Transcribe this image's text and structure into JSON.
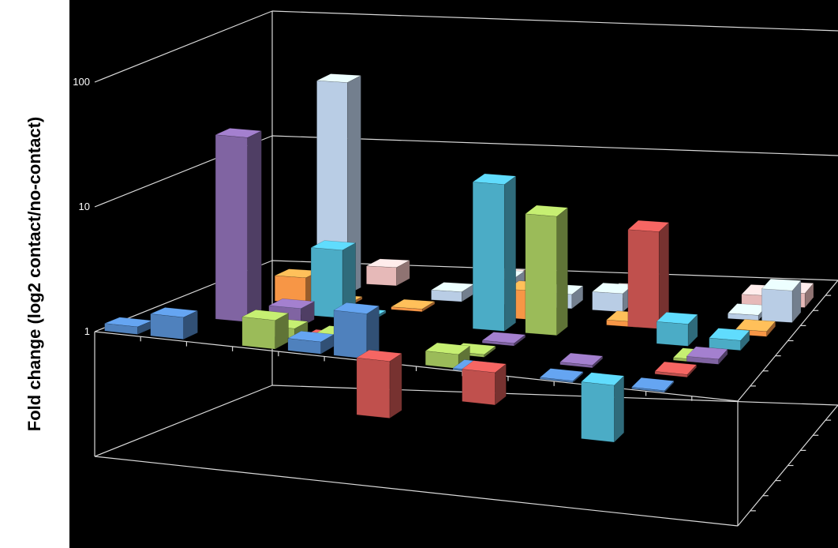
{
  "chart_data": {
    "type": "bar",
    "subtype": "3d-column",
    "title": "",
    "ylabel": "Fold change (log2 contact/no-contact)",
    "xlabel": "",
    "yscale": "log",
    "ylim": [
      0.1,
      100
    ],
    "yticks": [
      {
        "value": 1,
        "label": "1"
      },
      {
        "value": 10,
        "label": "10"
      },
      {
        "value": 100,
        "label": "100"
      }
    ],
    "grid": true,
    "background": "#000000",
    "series_colors": [
      "#4f81bd",
      "#9bbb59",
      "#c0504d",
      "#8064a2",
      "#4bacc6",
      "#f79646",
      "#b9cde5",
      "#e6b9b8"
    ],
    "bars": [
      {
        "row": 0,
        "col": 0,
        "color": "#4f81bd",
        "value": 1.15
      },
      {
        "row": 0,
        "col": 1,
        "color": "#4f81bd",
        "value": 1.5
      },
      {
        "row": 0,
        "col": 3,
        "color": "#9bbb59",
        "value": 1.7
      },
      {
        "row": 0,
        "col": 4,
        "color": "#4f81bd",
        "value": 1.25
      },
      {
        "row": 0,
        "col": 5,
        "color": "#4f81bd",
        "value": 2.3
      },
      {
        "row": 0,
        "col": 5.5,
        "color": "#c0504d",
        "value": 0.35
      },
      {
        "row": 0,
        "col": 7,
        "color": "#9bbb59",
        "value": 1.3
      },
      {
        "row": 0,
        "col": 7.6,
        "color": "#4f81bd",
        "value": 0.97
      },
      {
        "row": 0,
        "col": 7.8,
        "color": "#c0504d",
        "value": 0.55
      },
      {
        "row": 0,
        "col": 9.5,
        "color": "#4f81bd",
        "value": 0.97
      },
      {
        "row": 0,
        "col": 10.4,
        "color": "#4bacc6",
        "value": 0.35
      },
      {
        "row": 0,
        "col": 11.5,
        "color": "#4f81bd",
        "value": 0.97
      },
      {
        "row": 1,
        "col": 3,
        "color": "#9bbb59",
        "value": 1.2
      },
      {
        "row": 1,
        "col": 3.9,
        "color": "#c0504d",
        "value": 1.05
      },
      {
        "row": 1,
        "col": 4.2,
        "color": "#9bbb59",
        "value": 1.15
      },
      {
        "row": 1,
        "col": 7.2,
        "color": "#9bbb59",
        "value": 1.05
      },
      {
        "row": 1,
        "col": 9.6,
        "color": "#8064a2",
        "value": 1.05
      },
      {
        "row": 1,
        "col": 11.7,
        "color": "#c0504d",
        "value": 1.05
      },
      {
        "row": 2,
        "col": 1.5,
        "color": "#8064a2",
        "value": 30
      },
      {
        "row": 2,
        "col": 2.7,
        "color": "#8064a2",
        "value": 1.4
      },
      {
        "row": 2,
        "col": 7.5,
        "color": "#8064a2",
        "value": 1.05
      },
      {
        "row": 2,
        "col": 11.8,
        "color": "#9bbb59",
        "value": 1.05
      },
      {
        "row": 2,
        "col": 12.1,
        "color": "#8064a2",
        "value": 1.1
      },
      {
        "row": 3,
        "col": 2.3,
        "color": "#4bacc6",
        "value": 1.1
      },
      {
        "row": 3,
        "col": 3.2,
        "color": "#4bacc6",
        "value": 3.5
      },
      {
        "row": 3,
        "col": 3.9,
        "color": "#4bacc6",
        "value": 1.05
      },
      {
        "row": 3,
        "col": 6.9,
        "color": "#4bacc6",
        "value": 15
      },
      {
        "row": 3,
        "col": 8.1,
        "color": "#9bbb59",
        "value": 9
      },
      {
        "row": 3,
        "col": 11.1,
        "color": "#4bacc6",
        "value": 1.5
      },
      {
        "row": 3,
        "col": 12.3,
        "color": "#4bacc6",
        "value": 1.2
      },
      {
        "row": 4,
        "col": 1.9,
        "color": "#f79646",
        "value": 1.6
      },
      {
        "row": 4,
        "col": 2.9,
        "color": "#f79646",
        "value": 1.05
      },
      {
        "row": 4,
        "col": 4.6,
        "color": "#f79646",
        "value": 1.05
      },
      {
        "row": 4,
        "col": 7.3,
        "color": "#f79646",
        "value": 1.7
      },
      {
        "row": 4,
        "col": 9.6,
        "color": "#f79646",
        "value": 1.1
      },
      {
        "row": 4,
        "col": 10.1,
        "color": "#c0504d",
        "value": 6
      },
      {
        "row": 4,
        "col": 12.6,
        "color": "#f79646",
        "value": 1.1
      },
      {
        "row": 5,
        "col": 2.4,
        "color": "#b9cde5",
        "value": 50
      },
      {
        "row": 5,
        "col": 5.1,
        "color": "#b9cde5",
        "value": 1.2
      },
      {
        "row": 5,
        "col": 6.3,
        "color": "#b9cde5",
        "value": 1.6
      },
      {
        "row": 5,
        "col": 6.9,
        "color": "#b9cde5",
        "value": 1.1
      },
      {
        "row": 5,
        "col": 7.7,
        "color": "#b9cde5",
        "value": 1.3
      },
      {
        "row": 5,
        "col": 8.9,
        "color": "#b9cde5",
        "value": 1.4
      },
      {
        "row": 5,
        "col": 12.1,
        "color": "#b9cde5",
        "value": 1.1
      },
      {
        "row": 5,
        "col": 12.9,
        "color": "#b9cde5",
        "value": 1.8
      },
      {
        "row": 6,
        "col": 3.1,
        "color": "#e6b9b8",
        "value": 1.4
      },
      {
        "row": 6,
        "col": 5.9,
        "color": "#e6b9b8",
        "value": 1.3
      },
      {
        "row": 6,
        "col": 8.9,
        "color": "#e6b9b8",
        "value": 1.1
      },
      {
        "row": 6,
        "col": 12.1,
        "color": "#e6b9b8",
        "value": 1.2
      },
      {
        "row": 6,
        "col": 12.9,
        "color": "#e6b9b8",
        "value": 1.3
      }
    ]
  }
}
